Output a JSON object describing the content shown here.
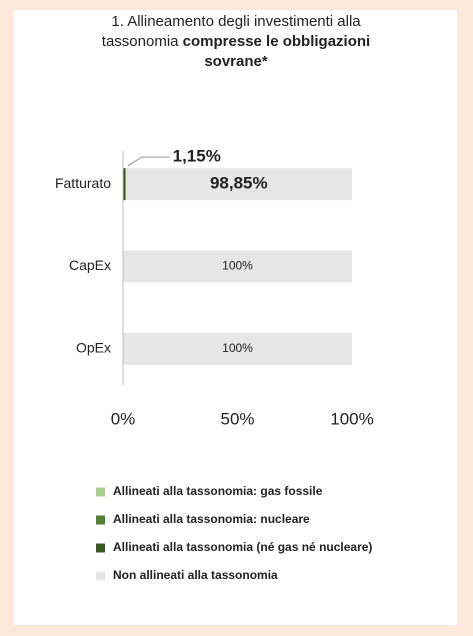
{
  "chart_data": {
    "type": "stacked_bar_horizontal",
    "title": [
      "1. Allineamento degli investimenti alla",
      "tassonomia",
      "compresse le obbligazioni",
      "sovrane*"
    ],
    "categories": [
      "Fatturato",
      "CapEx",
      "OpEx"
    ],
    "series": [
      {
        "name": "Allineati alla tassonomia: gas fossile",
        "color": "#a9d18e",
        "values": [
          0,
          0,
          0
        ]
      },
      {
        "name": "Allineati alla tassonomia: nucleare",
        "color": "#548235",
        "values": [
          0,
          0,
          0
        ]
      },
      {
        "name": "Allineati alla tassonomia (né gas né nucleare)",
        "color": "#375623",
        "values": [
          1.15,
          0,
          0
        ],
        "value_labels": [
          "1,15%",
          null,
          null
        ]
      },
      {
        "name": "Non allineati alla tassonomia",
        "color": "#e7e6e6",
        "values": [
          98.85,
          100,
          100
        ],
        "value_labels": [
          "98,85%",
          "100%",
          "100%"
        ]
      }
    ],
    "xlim": [
      0,
      100
    ],
    "xticks": [
      {
        "value": 0,
        "label": "0%"
      },
      {
        "value": 50,
        "label": "50%"
      },
      {
        "value": 100,
        "label": "100%"
      }
    ],
    "legend": "bottom"
  }
}
